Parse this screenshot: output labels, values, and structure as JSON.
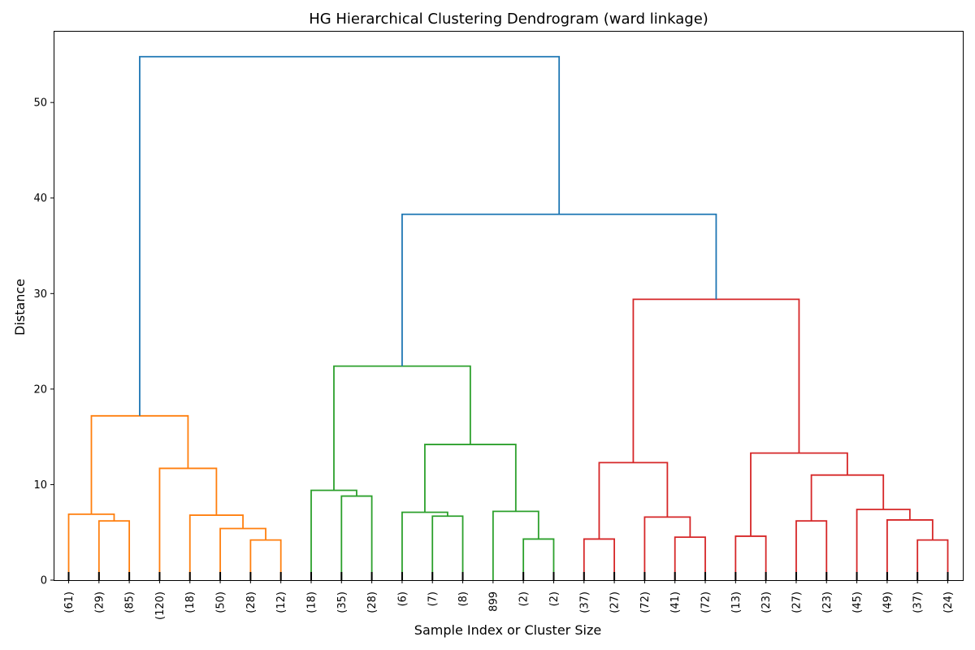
{
  "chart_data": {
    "type": "dendrogram",
    "title": "HG Hierarchical Clustering Dendrogram (ward linkage)",
    "xlabel": "Sample Index or Cluster Size",
    "ylabel": "Distance",
    "ylim": [
      0,
      57.5
    ],
    "yticks": [
      0,
      10,
      20,
      30,
      40,
      50
    ],
    "leaves": [
      "(61)",
      "(29)",
      "(85)",
      "(120)",
      "(18)",
      "(50)",
      "(28)",
      "(12)",
      "(18)",
      "(35)",
      "(28)",
      "(6)",
      "(7)",
      "(8)",
      "899",
      "(2)",
      "(2)",
      "(37)",
      "(27)",
      "(72)",
      "(41)",
      "(72)",
      "(13)",
      "(23)",
      "(27)",
      "(23)",
      "(45)",
      "(49)",
      "(37)",
      "(24)"
    ],
    "colors": {
      "root": "#1f77b4",
      "c1": "#ff7f0e",
      "c2": "#2ca02c",
      "c3": "#d62728"
    },
    "merges": [
      {
        "left": "L1",
        "right": "L2",
        "height": 6.2,
        "color": "c1"
      },
      {
        "left": "L0",
        "right": "N0",
        "height": 6.9,
        "color": "c1"
      },
      {
        "left": "L6",
        "right": "L7",
        "height": 4.2,
        "color": "c1"
      },
      {
        "left": "L5",
        "right": "N2",
        "height": 5.4,
        "color": "c1"
      },
      {
        "left": "L4",
        "right": "N3",
        "height": 6.8,
        "color": "c1"
      },
      {
        "left": "L3",
        "right": "N4",
        "height": 11.7,
        "color": "c1"
      },
      {
        "left": "N1",
        "right": "N5",
        "height": 17.2,
        "color": "c1"
      },
      {
        "left": "L9",
        "right": "L10",
        "height": 8.8,
        "color": "c2"
      },
      {
        "left": "L8",
        "right": "N7",
        "height": 9.4,
        "color": "c2"
      },
      {
        "left": "L12",
        "right": "L13",
        "height": 6.7,
        "color": "c2"
      },
      {
        "left": "L11",
        "right": "N9",
        "height": 7.1,
        "color": "c2"
      },
      {
        "left": "L15",
        "right": "L16",
        "height": 4.3,
        "color": "c2"
      },
      {
        "left": "L14",
        "right": "N11",
        "height": 7.2,
        "color": "c2"
      },
      {
        "left": "N10",
        "right": "N12",
        "height": 14.2,
        "color": "c2"
      },
      {
        "left": "N8",
        "right": "N13",
        "height": 22.4,
        "color": "c2"
      },
      {
        "left": "L17",
        "right": "L18",
        "height": 4.3,
        "color": "c3"
      },
      {
        "left": "L20",
        "right": "L21",
        "height": 4.5,
        "color": "c3"
      },
      {
        "left": "L19",
        "right": "N16",
        "height": 6.6,
        "color": "c3"
      },
      {
        "left": "N15",
        "right": "N17",
        "height": 12.3,
        "color": "c3"
      },
      {
        "left": "L22",
        "right": "L23",
        "height": 4.6,
        "color": "c3"
      },
      {
        "left": "L24",
        "right": "L25",
        "height": 6.2,
        "color": "c3"
      },
      {
        "left": "L28",
        "right": "L29",
        "height": 4.2,
        "color": "c3"
      },
      {
        "left": "L27",
        "right": "N21",
        "height": 6.3,
        "color": "c3"
      },
      {
        "left": "L26",
        "right": "N22",
        "height": 7.4,
        "color": "c3"
      },
      {
        "left": "N20",
        "right": "N23",
        "height": 11.0,
        "color": "c3"
      },
      {
        "left": "N19",
        "right": "N24",
        "height": 13.3,
        "color": "c3"
      },
      {
        "left": "N18",
        "right": "N25",
        "height": 29.4,
        "color": "c3"
      },
      {
        "left": "N14",
        "right": "N26",
        "height": 38.3,
        "color": "root"
      },
      {
        "left": "N6",
        "right": "N27",
        "height": 54.8,
        "color": "root"
      }
    ]
  }
}
